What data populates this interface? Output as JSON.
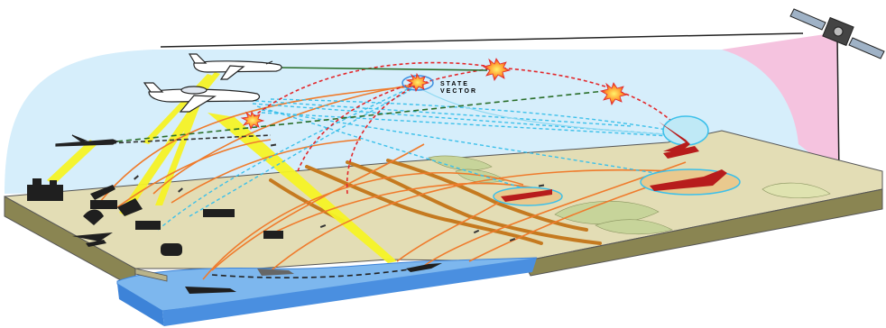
{
  "diagram": {
    "labels": {
      "state_vector_line1": "STATE",
      "state_vector_line2": "VECTOR"
    },
    "colors": {
      "sky": "#d6eefb",
      "space_wedge": "#f5c3df",
      "terrain_top": "#e3ddb5",
      "terrain_side": "#8a8552",
      "water": "#7db7ee",
      "water_side": "#3d83d8",
      "sensor_beam": "#f6f326",
      "data_link_orange": "#ef7b2c",
      "engagement_red": "#e3262a",
      "tracking_cyan": "#3cc0ea",
      "command_green": "#2a6e2a",
      "target_red": "#b71c1c",
      "terrain_brown": "#c57a20"
    },
    "icons": [
      "satellite-icon",
      "awacs-aircraft-icon",
      "tanker-aircraft-icon",
      "fighter-jet-icon",
      "radar-dish-icon",
      "command-center-icon",
      "missile-launcher-icon",
      "naval-ship-icon",
      "submarine-icon",
      "enemy-missile-launcher-icon",
      "intercept-burst-icon"
    ]
  }
}
